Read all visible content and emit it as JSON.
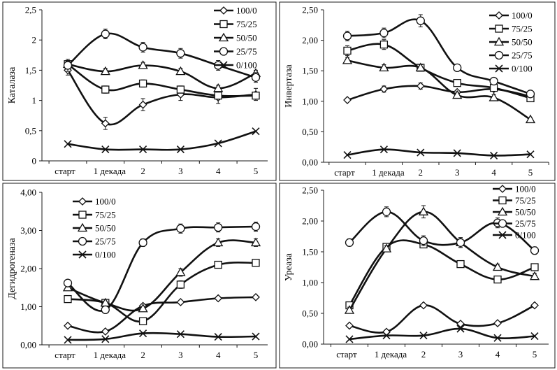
{
  "chart_data": [
    {
      "type": "line",
      "ylabel": "Каталаза",
      "categories": [
        "старт",
        "1 декада",
        "2",
        "3",
        "4",
        "5"
      ],
      "yticks": [
        "0",
        "0,5",
        "1",
        "1,5",
        "2",
        "2,5"
      ],
      "ylim": [
        0,
        2.5
      ],
      "legend": "top-right",
      "series": [
        {
          "name": "100/0",
          "marker": "diamond",
          "values": [
            1.5,
            0.62,
            0.93,
            1.1,
            1.05,
            1.1
          ],
          "errors": [
            0.08,
            0.1,
            0.1,
            0.1,
            0.1,
            0.1
          ]
        },
        {
          "name": "75/25",
          "marker": "square",
          "values": [
            1.6,
            1.18,
            1.28,
            1.18,
            1.08,
            1.08
          ],
          "errors": [
            0.06,
            0.06,
            0.06,
            0.06,
            0.06,
            0.06
          ]
        },
        {
          "name": "50/50",
          "marker": "triangle",
          "values": [
            1.6,
            1.48,
            1.58,
            1.48,
            1.2,
            1.45
          ],
          "errors": [
            0.05,
            0.05,
            0.05,
            0.05,
            0.05,
            0.05
          ]
        },
        {
          "name": "25/75",
          "marker": "circle",
          "values": [
            1.58,
            2.1,
            1.88,
            1.78,
            1.58,
            1.38
          ],
          "errors": [
            0.1,
            0.08,
            0.08,
            0.08,
            0.08,
            0.08
          ]
        },
        {
          "name": "0/100",
          "marker": "x",
          "values": [
            0.28,
            0.19,
            0.19,
            0.19,
            0.29,
            0.49
          ],
          "errors": [
            0,
            0,
            0,
            0,
            0,
            0
          ]
        }
      ]
    },
    {
      "type": "line",
      "ylabel": "Инвертаза",
      "categories": [
        "старт",
        "1 декада",
        "2",
        "3",
        "4",
        "5"
      ],
      "yticks": [
        "0,00",
        "0,50",
        "1,00",
        "1,50",
        "2,00",
        "2,50"
      ],
      "ylim": [
        0,
        2.5
      ],
      "legend": "top-right",
      "series": [
        {
          "name": "100/0",
          "marker": "diamond",
          "values": [
            1.02,
            1.2,
            1.25,
            1.15,
            1.2,
            1.08
          ],
          "errors": [
            0.03,
            0.05,
            0.05,
            0.03,
            0.03,
            0.03
          ]
        },
        {
          "name": "75/25",
          "marker": "square",
          "values": [
            1.83,
            1.93,
            1.55,
            1.3,
            1.22,
            1.05
          ],
          "errors": [
            0.08,
            0.08,
            0.05,
            0.05,
            0.05,
            0.05
          ]
        },
        {
          "name": "50/50",
          "marker": "triangle",
          "values": [
            1.67,
            1.55,
            1.55,
            1.1,
            1.06,
            0.7
          ],
          "errors": [
            0.05,
            0.05,
            0.05,
            0.05,
            0.05,
            0.03
          ]
        },
        {
          "name": "25/75",
          "marker": "circle",
          "values": [
            2.07,
            2.12,
            2.32,
            1.55,
            1.33,
            1.12
          ],
          "errors": [
            0.08,
            0.08,
            0.1,
            0.05,
            0.05,
            0.05
          ]
        },
        {
          "name": "0/100",
          "marker": "x",
          "values": [
            0.12,
            0.21,
            0.16,
            0.15,
            0.11,
            0.13
          ],
          "errors": [
            0,
            0,
            0,
            0,
            0,
            0
          ]
        }
      ]
    },
    {
      "type": "line",
      "ylabel": "Дегидрогеназа",
      "categories": [
        "старт",
        "1 декада",
        "2",
        "3",
        "4",
        "5"
      ],
      "yticks": [
        "0,00",
        "1,00",
        "2,00",
        "3,00",
        "4,00"
      ],
      "ylim": [
        0,
        4
      ],
      "legend": "top-left",
      "series": [
        {
          "name": "100/0",
          "marker": "diamond",
          "values": [
            0.5,
            0.35,
            1.02,
            1.12,
            1.22,
            1.25
          ],
          "errors": [
            0.03,
            0.03,
            0.05,
            0.05,
            0.05,
            0.05
          ]
        },
        {
          "name": "75/25",
          "marker": "square",
          "values": [
            1.2,
            1.1,
            0.62,
            1.58,
            2.1,
            2.15
          ],
          "errors": [
            0.05,
            0.05,
            0.05,
            0.1,
            0.05,
            0.05
          ]
        },
        {
          "name": "50/50",
          "marker": "triangle",
          "values": [
            1.5,
            1.1,
            0.95,
            1.9,
            2.68,
            2.68
          ],
          "errors": [
            0.05,
            0.05,
            0.05,
            0.1,
            0.1,
            0.1
          ]
        },
        {
          "name": "25/75",
          "marker": "circle",
          "values": [
            1.62,
            0.92,
            2.68,
            3.05,
            3.08,
            3.1
          ],
          "errors": [
            0.08,
            0.05,
            0.1,
            0.12,
            0.12,
            0.12
          ]
        },
        {
          "name": "0/100",
          "marker": "x",
          "values": [
            0.13,
            0.15,
            0.3,
            0.28,
            0.21,
            0.22
          ],
          "errors": [
            0,
            0,
            0,
            0,
            0,
            0
          ]
        }
      ]
    },
    {
      "type": "line",
      "ylabel": "Уреаза",
      "categories": [
        "старт",
        "1 декада",
        "2",
        "3",
        "4",
        "5"
      ],
      "yticks": [
        "0,00",
        "0,50",
        "1,00",
        "1,50",
        "2,00",
        "2,50"
      ],
      "ylim": [
        0,
        2.5
      ],
      "legend": "top-right",
      "series": [
        {
          "name": "100/0",
          "marker": "diamond",
          "values": [
            0.3,
            0.2,
            0.63,
            0.33,
            0.34,
            0.63
          ],
          "errors": [
            0.02,
            0.02,
            0.03,
            0.03,
            0.03,
            0.03
          ]
        },
        {
          "name": "75/25",
          "marker": "square",
          "values": [
            0.63,
            1.58,
            1.62,
            1.3,
            1.05,
            1.25
          ],
          "errors": [
            0.05,
            0.05,
            0.05,
            0.05,
            0.05,
            0.05
          ]
        },
        {
          "name": "50/50",
          "marker": "triangle",
          "values": [
            0.55,
            1.55,
            2.15,
            1.65,
            1.25,
            1.1
          ],
          "errors": [
            0.05,
            0.05,
            0.1,
            0.08,
            0.05,
            0.05
          ]
        },
        {
          "name": "25/75",
          "marker": "circle",
          "values": [
            1.65,
            2.15,
            1.68,
            1.65,
            1.97,
            1.52
          ],
          "errors": [
            0.06,
            0.08,
            0.08,
            0.08,
            0.08,
            0.06
          ]
        },
        {
          "name": "0/100",
          "marker": "x",
          "values": [
            0.08,
            0.14,
            0.14,
            0.25,
            0.1,
            0.13
          ],
          "errors": [
            0,
            0,
            0,
            0,
            0,
            0
          ]
        }
      ]
    }
  ]
}
